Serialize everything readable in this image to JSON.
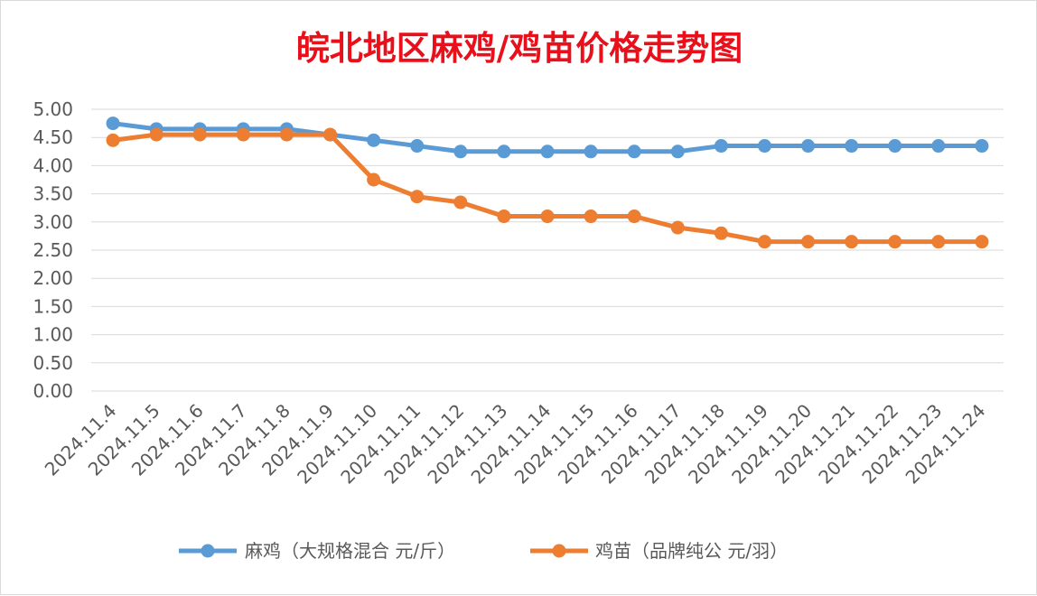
{
  "chart_data": {
    "type": "line",
    "title": "皖北地区麻鸡/鸡苗价格走势图",
    "xlabel": "",
    "ylabel": "",
    "ylim": [
      0,
      5
    ],
    "grid": true,
    "legend_position": "bottom",
    "yticks": [
      "0.00",
      "0.50",
      "1.00",
      "1.50",
      "2.00",
      "2.50",
      "3.00",
      "3.50",
      "4.00",
      "4.50",
      "5.00"
    ],
    "categories": [
      "2024.11.4",
      "2024.11.5",
      "2024.11.6",
      "2024.11.7",
      "2024.11.8",
      "2024.11.9",
      "2024.11.10",
      "2024.11.11",
      "2024.11.12",
      "2024.11.13",
      "2024.11.14",
      "2024.11.15",
      "2024.11.16",
      "2024.11.17",
      "2024.11.18",
      "2024.11.19",
      "2024.11.20",
      "2024.11.21",
      "2024.11.22",
      "2024.11.23",
      "2024.11.24"
    ],
    "series": [
      {
        "name": "麻鸡（大规格混合 元/斤）",
        "color": "#5b9bd5",
        "values": [
          4.75,
          4.65,
          4.65,
          4.65,
          4.65,
          4.55,
          4.45,
          4.35,
          4.25,
          4.25,
          4.25,
          4.25,
          4.25,
          4.25,
          4.35,
          4.35,
          4.35,
          4.35,
          4.35,
          4.35,
          4.35
        ]
      },
      {
        "name": "鸡苗（品牌纯公 元/羽）",
        "color": "#ed7d31",
        "values": [
          4.45,
          4.55,
          4.55,
          4.55,
          4.55,
          4.55,
          3.75,
          3.45,
          3.35,
          3.1,
          3.1,
          3.1,
          3.1,
          2.9,
          2.8,
          2.65,
          2.65,
          2.65,
          2.65,
          2.65,
          2.65
        ]
      }
    ]
  }
}
